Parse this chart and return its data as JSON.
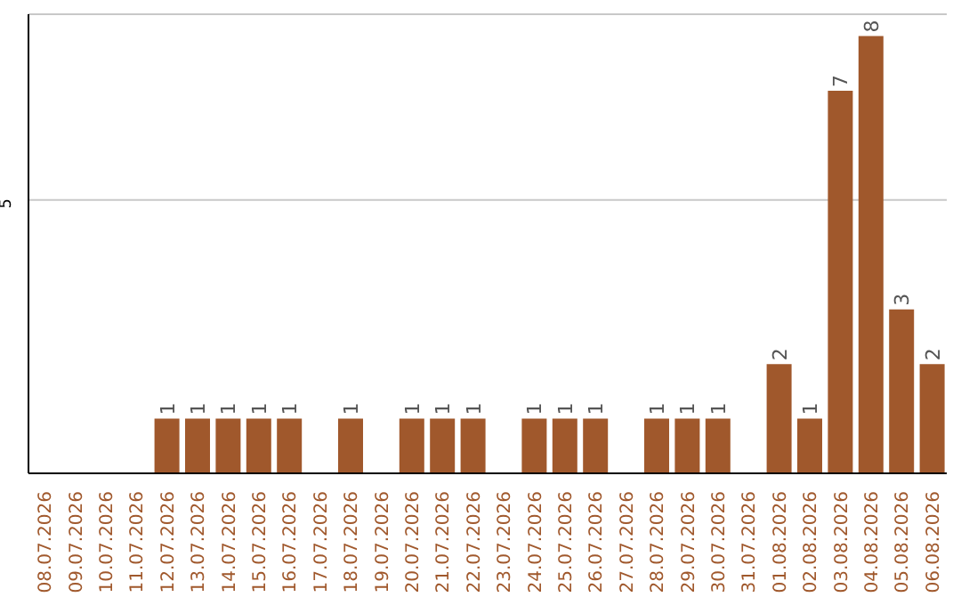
{
  "chart_data": {
    "type": "bar",
    "categories": [
      "08.07.2026",
      "09.07.2026",
      "10.07.2026",
      "11.07.2026",
      "12.07.2026",
      "13.07.2026",
      "14.07.2026",
      "15.07.2026",
      "16.07.2026",
      "17.07.2026",
      "18.07.2026",
      "19.07.2026",
      "20.07.2026",
      "21.07.2026",
      "22.07.2026",
      "23.07.2026",
      "24.07.2026",
      "25.07.2026",
      "26.07.2026",
      "27.07.2026",
      "28.07.2026",
      "29.07.2026",
      "30.07.2026",
      "31.07.2026",
      "01.08.2026",
      "02.08.2026",
      "03.08.2026",
      "04.08.2026",
      "05.08.2026",
      "06.08.2026"
    ],
    "values": [
      0,
      0,
      0,
      0,
      1,
      1,
      1,
      1,
      1,
      0,
      1,
      0,
      1,
      1,
      1,
      0,
      1,
      1,
      1,
      0,
      1,
      1,
      1,
      0,
      2,
      1,
      7,
      8,
      3,
      2
    ],
    "value_labels": [
      null,
      null,
      null,
      null,
      "1",
      "1",
      "1",
      "1",
      "1",
      null,
      "1",
      null,
      "1",
      "1",
      "1",
      null,
      "1",
      "1",
      "1",
      null,
      "1",
      "1",
      "1",
      null,
      "2",
      "1",
      "7",
      "8",
      "3",
      "2"
    ],
    "color": "#a0582c",
    "ylim": [
      0,
      8.4
    ],
    "yticks": [
      5
    ],
    "grid": "y"
  }
}
